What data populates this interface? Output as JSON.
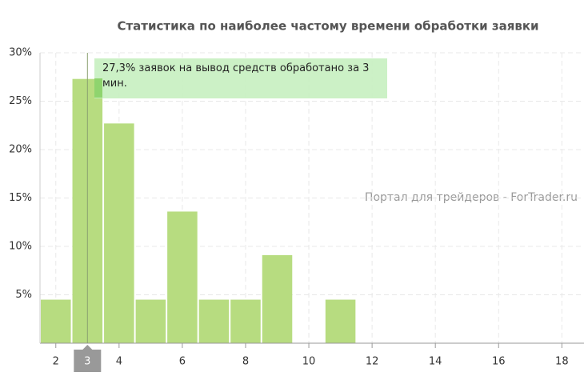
{
  "chart_data": {
    "type": "bar",
    "title": "Статистика по наиболее частому времени обработки заявки",
    "x": [
      2,
      3,
      4,
      5,
      6,
      7,
      8,
      9,
      10,
      11
    ],
    "values": [
      4.5,
      27.3,
      22.7,
      4.5,
      13.6,
      4.5,
      4.5,
      9.1,
      0,
      4.5
    ],
    "color": "#b7dc80",
    "xlim": [
      1.5,
      18.7
    ],
    "xticks": [
      2,
      4,
      6,
      8,
      10,
      12,
      14,
      16,
      18
    ],
    "ylim": [
      0,
      30
    ],
    "yticks": [
      {
        "value": 5,
        "label": "5%"
      },
      {
        "value": 10,
        "label": "10%"
      },
      {
        "value": 15,
        "label": "15%"
      },
      {
        "value": 20,
        "label": "20%"
      },
      {
        "value": 25,
        "label": "25%"
      },
      {
        "value": 30,
        "label": "30%"
      }
    ],
    "grid": true,
    "crosshair": {
      "x": 3
    },
    "tooltip": "27,3% заявок на вывод средств обработано за 3 мин.",
    "watermark": "Портал для трейдеров - ForTrader.ru"
  }
}
